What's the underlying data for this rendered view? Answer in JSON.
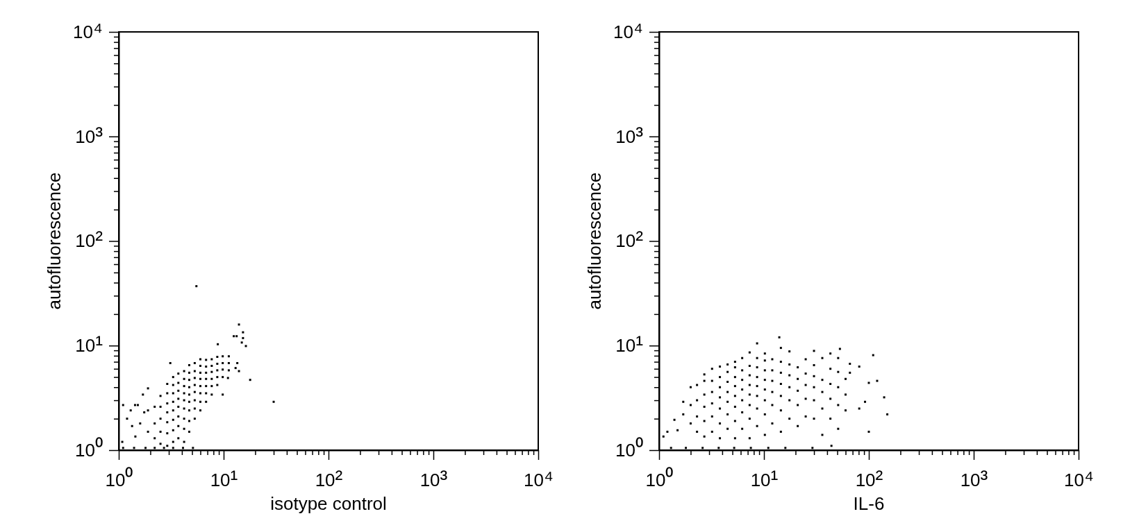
{
  "chart_data": [
    {
      "type": "scatter",
      "xlabel": "isotype control",
      "ylabel": "autofluorescence",
      "color": "#000000",
      "marker": "square",
      "log": "xy",
      "xlim": [
        1,
        10000
      ],
      "ylim": [
        1,
        10000
      ],
      "xticks": [
        {
          "value": 1,
          "label": "10⁰"
        },
        {
          "value": 2,
          "label": null
        },
        {
          "value": 3,
          "label": null
        },
        {
          "value": 4,
          "label": null
        },
        {
          "value": 5,
          "label": null
        },
        {
          "value": 6,
          "label": null
        },
        {
          "value": 7,
          "label": null
        },
        {
          "value": 8,
          "label": null
        },
        {
          "value": 9,
          "label": null
        },
        {
          "value": 10,
          "label": "10¹"
        },
        {
          "value": 20,
          "label": null
        },
        {
          "value": 30,
          "label": null
        },
        {
          "value": 40,
          "label": null
        },
        {
          "value": 50,
          "label": null
        },
        {
          "value": 60,
          "label": null
        },
        {
          "value": 70,
          "label": null
        },
        {
          "value": 80,
          "label": null
        },
        {
          "value": 90,
          "label": null
        },
        {
          "value": 100,
          "label": "10²"
        },
        {
          "value": 200,
          "label": null
        },
        {
          "value": 300,
          "label": null
        },
        {
          "value": 400,
          "label": null
        },
        {
          "value": 500,
          "label": null
        },
        {
          "value": 600,
          "label": null
        },
        {
          "value": 700,
          "label": null
        },
        {
          "value": 800,
          "label": null
        },
        {
          "value": 900,
          "label": null
        },
        {
          "value": 1000,
          "label": "10³"
        },
        {
          "value": 2000,
          "label": null
        },
        {
          "value": 3000,
          "label": null
        },
        {
          "value": 4000,
          "label": null
        },
        {
          "value": 5000,
          "label": null
        },
        {
          "value": 6000,
          "label": null
        },
        {
          "value": 7000,
          "label": null
        },
        {
          "value": 8000,
          "label": null
        },
        {
          "value": 9000,
          "label": null
        },
        {
          "value": 10000,
          "label": "10⁴"
        }
      ],
      "yticks": [
        {
          "value": 1,
          "label": "10⁰"
        },
        {
          "value": 2,
          "label": null
        },
        {
          "value": 3,
          "label": null
        },
        {
          "value": 4,
          "label": null
        },
        {
          "value": 5,
          "label": null
        },
        {
          "value": 6,
          "label": null
        },
        {
          "value": 7,
          "label": null
        },
        {
          "value": 8,
          "label": null
        },
        {
          "value": 9,
          "label": null
        },
        {
          "value": 10,
          "label": "10¹"
        },
        {
          "value": 20,
          "label": null
        },
        {
          "value": 30,
          "label": null
        },
        {
          "value": 40,
          "label": null
        },
        {
          "value": 50,
          "label": null
        },
        {
          "value": 60,
          "label": null
        },
        {
          "value": 70,
          "label": null
        },
        {
          "value": 80,
          "label": null
        },
        {
          "value": 90,
          "label": null
        },
        {
          "value": 100,
          "label": "10²"
        },
        {
          "value": 200,
          "label": null
        },
        {
          "value": 300,
          "label": null
        },
        {
          "value": 400,
          "label": null
        },
        {
          "value": 500,
          "label": null
        },
        {
          "value": 600,
          "label": null
        },
        {
          "value": 700,
          "label": null
        },
        {
          "value": 800,
          "label": null
        },
        {
          "value": 900,
          "label": null
        },
        {
          "value": 1000,
          "label": "10³"
        },
        {
          "value": 2000,
          "label": null
        },
        {
          "value": 3000,
          "label": null
        },
        {
          "value": 4000,
          "label": null
        },
        {
          "value": 5000,
          "label": null
        },
        {
          "value": 6000,
          "label": null
        },
        {
          "value": 7000,
          "label": null
        },
        {
          "value": 8000,
          "label": null
        },
        {
          "value": 9000,
          "label": null
        },
        {
          "value": 10000,
          "label": "10⁴"
        }
      ],
      "x": [
        1.9,
        1.9,
        2.2,
        2.2,
        2.2,
        2.5,
        2.5,
        2.5,
        2.5,
        2.5,
        2.9,
        2.9,
        2.9,
        2.9,
        2.9,
        2.9,
        2.9,
        3.3,
        3.3,
        3.3,
        3.3,
        3.3,
        3.3,
        3.3,
        3.3,
        3.7,
        3.7,
        3.7,
        3.7,
        3.7,
        3.7,
        3.7,
        3.7,
        4.2,
        4.2,
        4.2,
        4.2,
        4.2,
        4.2,
        4.2,
        4.2,
        4.2,
        4.7,
        4.7,
        4.7,
        4.7,
        4.7,
        4.7,
        4.7,
        4.7,
        4.7,
        5.3,
        5.3,
        5.3,
        5.3,
        5.3,
        5.3,
        5.3,
        5.3,
        6.0,
        6.0,
        6.0,
        6.0,
        6.0,
        6.0,
        6.0,
        6.0,
        6.8,
        6.8,
        6.8,
        6.8,
        6.8,
        6.8,
        6.8,
        7.7,
        7.7,
        7.7,
        7.7,
        7.7,
        7.7,
        8.7,
        8.7,
        8.7,
        8.7,
        8.7,
        9.8,
        9.8,
        9.8,
        9.8,
        11.2,
        11.2,
        11.2,
        5.5,
        14,
        15.3,
        15.3,
        12.5,
        13.3,
        14.9,
        16.3,
        8.8,
        13.5,
        14,
        13,
        11,
        9.8,
        17.9,
        30,
        3.1,
        1.9,
        1.7,
        1.1,
        1.2,
        1.3,
        1.34,
        1.08,
        1.44,
        1.43,
        1.52,
        1.6,
        1.75,
        1.1,
        1.4,
        1.8,
        2.2,
        2.7,
        3.3,
        4.1,
        5.1
      ],
      "values": [
        1.5,
        2.4,
        1.3,
        1.8,
        2.6,
        1.15,
        1.5,
        2.0,
        2.6,
        3.3,
        1.1,
        1.45,
        1.85,
        2.3,
        2.8,
        3.5,
        4.3,
        1.2,
        1.55,
        1.95,
        2.4,
        2.9,
        3.5,
        4.2,
        5.0,
        1.3,
        1.7,
        2.1,
        2.6,
        3.1,
        3.7,
        4.4,
        5.4,
        1.2,
        1.6,
        2.0,
        2.5,
        3.0,
        3.5,
        4.1,
        4.8,
        5.7,
        1.5,
        1.9,
        2.4,
        2.9,
        3.4,
        4.0,
        4.7,
        5.5,
        6.5,
        2.0,
        2.5,
        3.0,
        3.6,
        4.2,
        4.9,
        5.7,
        6.8,
        2.4,
        2.9,
        3.5,
        4.1,
        4.8,
        5.5,
        6.4,
        7.4,
        2.9,
        3.5,
        4.1,
        4.8,
        5.5,
        6.3,
        7.3,
        3.4,
        4.1,
        4.8,
        5.6,
        6.4,
        7.4,
        4.2,
        5.0,
        5.8,
        6.7,
        7.8,
        5.0,
        5.9,
        6.8,
        7.9,
        5.8,
        6.8,
        7.9,
        37,
        15.9,
        13.4,
        11.8,
        12.3,
        12.3,
        10.7,
        9.9,
        10.3,
        6.8,
        5.7,
        6.1,
        4.9,
        3.4,
        4.7,
        2.9,
        6.8,
        3.9,
        3.4,
        2.7,
        2.0,
        2.4,
        1.7,
        1.2,
        1.35,
        2.7,
        2.7,
        1.8,
        2.3,
        1.05,
        1.05,
        1.05,
        1.05,
        1.05,
        1.05,
        1.05,
        1.05
      ]
    },
    {
      "type": "scatter",
      "xlabel": "IL-6",
      "ylabel": "autofluorescence",
      "color": "#000000",
      "marker": "square",
      "log": "xy",
      "xlim": [
        1,
        10000
      ],
      "ylim": [
        1,
        10000
      ],
      "xticks": [
        {
          "value": 1,
          "label": "10⁰"
        },
        {
          "value": 2,
          "label": null
        },
        {
          "value": 3,
          "label": null
        },
        {
          "value": 4,
          "label": null
        },
        {
          "value": 5,
          "label": null
        },
        {
          "value": 6,
          "label": null
        },
        {
          "value": 7,
          "label": null
        },
        {
          "value": 8,
          "label": null
        },
        {
          "value": 9,
          "label": null
        },
        {
          "value": 10,
          "label": "10¹"
        },
        {
          "value": 20,
          "label": null
        },
        {
          "value": 30,
          "label": null
        },
        {
          "value": 40,
          "label": null
        },
        {
          "value": 50,
          "label": null
        },
        {
          "value": 60,
          "label": null
        },
        {
          "value": 70,
          "label": null
        },
        {
          "value": 80,
          "label": null
        },
        {
          "value": 90,
          "label": null
        },
        {
          "value": 100,
          "label": "10²"
        },
        {
          "value": 200,
          "label": null
        },
        {
          "value": 300,
          "label": null
        },
        {
          "value": 400,
          "label": null
        },
        {
          "value": 500,
          "label": null
        },
        {
          "value": 600,
          "label": null
        },
        {
          "value": 700,
          "label": null
        },
        {
          "value": 800,
          "label": null
        },
        {
          "value": 900,
          "label": null
        },
        {
          "value": 1000,
          "label": "10³"
        },
        {
          "value": 2000,
          "label": null
        },
        {
          "value": 3000,
          "label": null
        },
        {
          "value": 4000,
          "label": null
        },
        {
          "value": 5000,
          "label": null
        },
        {
          "value": 6000,
          "label": null
        },
        {
          "value": 7000,
          "label": null
        },
        {
          "value": 8000,
          "label": null
        },
        {
          "value": 9000,
          "label": null
        },
        {
          "value": 10000,
          "label": "10⁴"
        }
      ],
      "yticks": [
        {
          "value": 1,
          "label": "10⁰"
        },
        {
          "value": 2,
          "label": null
        },
        {
          "value": 3,
          "label": null
        },
        {
          "value": 4,
          "label": null
        },
        {
          "value": 5,
          "label": null
        },
        {
          "value": 6,
          "label": null
        },
        {
          "value": 7,
          "label": null
        },
        {
          "value": 8,
          "label": null
        },
        {
          "value": 9,
          "label": null
        },
        {
          "value": 10,
          "label": "10¹"
        },
        {
          "value": 20,
          "label": null
        },
        {
          "value": 30,
          "label": null
        },
        {
          "value": 40,
          "label": null
        },
        {
          "value": 50,
          "label": null
        },
        {
          "value": 60,
          "label": null
        },
        {
          "value": 70,
          "label": null
        },
        {
          "value": 80,
          "label": null
        },
        {
          "value": 90,
          "label": null
        },
        {
          "value": 100,
          "label": "10²"
        },
        {
          "value": 200,
          "label": null
        },
        {
          "value": 300,
          "label": null
        },
        {
          "value": 400,
          "label": null
        },
        {
          "value": 500,
          "label": null
        },
        {
          "value": 600,
          "label": null
        },
        {
          "value": 700,
          "label": null
        },
        {
          "value": 800,
          "label": null
        },
        {
          "value": 900,
          "label": null
        },
        {
          "value": 1000,
          "label": "10³"
        },
        {
          "value": 2000,
          "label": null
        },
        {
          "value": 3000,
          "label": null
        },
        {
          "value": 4000,
          "label": null
        },
        {
          "value": 5000,
          "label": null
        },
        {
          "value": 6000,
          "label": null
        },
        {
          "value": 7000,
          "label": null
        },
        {
          "value": 8000,
          "label": null
        },
        {
          "value": 9000,
          "label": null
        },
        {
          "value": 10000,
          "label": "10⁴"
        }
      ],
      "x": [
        1.1,
        1.2,
        1.4,
        1.5,
        1.7,
        1.7,
        2.0,
        2.0,
        2.0,
        2.3,
        2.3,
        2.3,
        2.3,
        2.7,
        2.7,
        2.7,
        2.7,
        2.7,
        2.7,
        3.2,
        3.2,
        3.2,
        3.2,
        3.2,
        3.2,
        3.8,
        3.8,
        3.8,
        3.8,
        3.8,
        3.8,
        3.8,
        4.5,
        4.5,
        4.5,
        4.5,
        4.5,
        4.5,
        4.5,
        5.3,
        5.3,
        5.3,
        5.3,
        5.3,
        5.3,
        5.3,
        5.3,
        6.2,
        6.2,
        6.2,
        6.2,
        6.2,
        6.2,
        6.2,
        7.3,
        7.3,
        7.3,
        7.3,
        7.3,
        7.3,
        7.3,
        7.3,
        8.6,
        8.6,
        8.6,
        8.6,
        8.6,
        8.6,
        8.6,
        8.6,
        10.2,
        10.2,
        10.2,
        10.2,
        10.2,
        10.2,
        10.2,
        10.2,
        12,
        12,
        12,
        12,
        12,
        12,
        14,
        14.5,
        14.5,
        14.5,
        14.5,
        14.5,
        14.5,
        14.5,
        17.5,
        17.5,
        17.5,
        17.5,
        17.5,
        17.5,
        21,
        21,
        21,
        21,
        21,
        25,
        25,
        25,
        25,
        25,
        30,
        30,
        30,
        30,
        30,
        30,
        36,
        36,
        36,
        36,
        36,
        43,
        43,
        43,
        43,
        43,
        51,
        51,
        51,
        51,
        51,
        53,
        60,
        60,
        60,
        66,
        66,
        81,
        81,
        92,
        100,
        100,
        110,
        120,
        140,
        150,
        1.3,
        1.8,
        2.6,
        3.7,
        5.2,
        7.5,
        11,
        16,
        29,
        44
      ],
      "values": [
        1.35,
        1.5,
        1.95,
        1.55,
        2.2,
        2.9,
        1.8,
        2.7,
        4.0,
        1.5,
        2.1,
        3.0,
        4.2,
        1.35,
        1.9,
        2.6,
        3.4,
        4.6,
        5.3,
        1.5,
        2.1,
        2.8,
        3.6,
        4.6,
        6.0,
        1.3,
        1.8,
        2.5,
        3.2,
        4.0,
        5.0,
        6.3,
        1.6,
        2.2,
        2.9,
        3.6,
        4.5,
        5.6,
        6.6,
        1.3,
        1.9,
        2.6,
        3.3,
        4.1,
        5.0,
        6.2,
        7.0,
        1.6,
        2.3,
        3.0,
        3.8,
        4.7,
        5.8,
        7.6,
        1.3,
        2.0,
        2.7,
        3.4,
        4.2,
        5.2,
        6.4,
        8.6,
        1.7,
        2.5,
        3.3,
        4.1,
        5.0,
        6.2,
        7.6,
        10.5,
        1.4,
        2.2,
        3.0,
        3.8,
        4.7,
        5.8,
        7.2,
        8.4,
        1.8,
        2.7,
        3.6,
        4.6,
        5.8,
        7.4,
        12,
        1.5,
        2.4,
        3.3,
        4.3,
        5.5,
        7.0,
        9.5,
        2.0,
        3.0,
        4.0,
        5.2,
        6.6,
        8.8,
        1.7,
        2.7,
        3.7,
        4.8,
        6.2,
        2.1,
        3.1,
        4.2,
        5.4,
        7.4,
        2.0,
        3.0,
        4.0,
        5.1,
        6.5,
        8.9,
        1.4,
        2.5,
        3.6,
        4.7,
        7.6,
        2.0,
        3.1,
        4.3,
        6.0,
        8.4,
        1.6,
        2.7,
        4.0,
        5.6,
        7.6,
        9.3,
        2.4,
        3.4,
        4.8,
        5.5,
        6.7,
        2.5,
        6.3,
        2.9,
        1.5,
        4.4,
        8.1,
        4.6,
        3.2,
        2.2,
        1.05,
        1.05,
        1.05,
        1.05,
        1.05,
        1.05,
        1.05,
        1.05,
        1.05,
        1.1
      ]
    }
  ]
}
